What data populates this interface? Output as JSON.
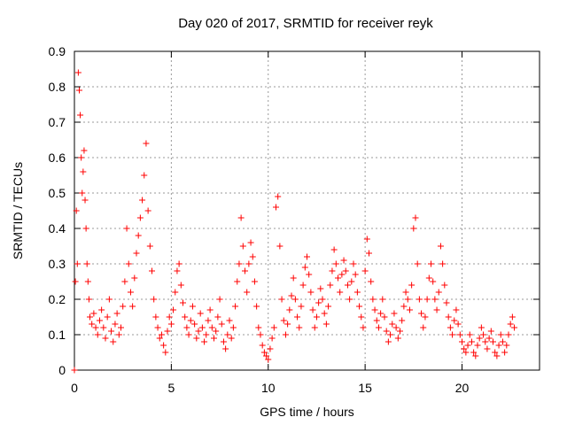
{
  "chart_data": {
    "type": "scatter",
    "title": "Day 020 of 2017, SRMTID for receiver reyk",
    "xlabel": "GPS time / hours",
    "ylabel": "SRMTID / TECUs",
    "xlim": [
      0,
      24
    ],
    "ylim": [
      0,
      0.9
    ],
    "xticks": [
      0,
      5,
      10,
      15,
      20
    ],
    "yticks": [
      0,
      0.1,
      0.2,
      0.3,
      0.4,
      0.5,
      0.6,
      0.7,
      0.8,
      0.9
    ],
    "grid": true,
    "marker": "+",
    "color": "#ff0000",
    "series": [
      {
        "name": "SRMTID",
        "points": [
          [
            0.0,
            0.0
          ],
          [
            0.05,
            0.25
          ],
          [
            0.1,
            0.45
          ],
          [
            0.15,
            0.3
          ],
          [
            0.2,
            0.84
          ],
          [
            0.25,
            0.79
          ],
          [
            0.3,
            0.72
          ],
          [
            0.35,
            0.6
          ],
          [
            0.4,
            0.5
          ],
          [
            0.45,
            0.56
          ],
          [
            0.5,
            0.62
          ],
          [
            0.55,
            0.48
          ],
          [
            0.6,
            0.4
          ],
          [
            0.65,
            0.3
          ],
          [
            0.7,
            0.25
          ],
          [
            0.75,
            0.2
          ],
          [
            0.8,
            0.15
          ],
          [
            0.9,
            0.13
          ],
          [
            1.0,
            0.16
          ],
          [
            1.1,
            0.12
          ],
          [
            1.2,
            0.1
          ],
          [
            1.3,
            0.14
          ],
          [
            1.4,
            0.17
          ],
          [
            1.5,
            0.12
          ],
          [
            1.6,
            0.09
          ],
          [
            1.7,
            0.15
          ],
          [
            1.8,
            0.2
          ],
          [
            1.9,
            0.11
          ],
          [
            2.0,
            0.08
          ],
          [
            2.1,
            0.13
          ],
          [
            2.2,
            0.16
          ],
          [
            2.3,
            0.1
          ],
          [
            2.4,
            0.12
          ],
          [
            2.5,
            0.18
          ],
          [
            2.6,
            0.25
          ],
          [
            2.7,
            0.4
          ],
          [
            2.8,
            0.3
          ],
          [
            2.9,
            0.22
          ],
          [
            3.0,
            0.18
          ],
          [
            3.1,
            0.26
          ],
          [
            3.2,
            0.33
          ],
          [
            3.3,
            0.38
          ],
          [
            3.4,
            0.43
          ],
          [
            3.5,
            0.48
          ],
          [
            3.6,
            0.55
          ],
          [
            3.7,
            0.64
          ],
          [
            3.8,
            0.45
          ],
          [
            3.9,
            0.35
          ],
          [
            4.0,
            0.28
          ],
          [
            4.1,
            0.2
          ],
          [
            4.2,
            0.15
          ],
          [
            4.3,
            0.12
          ],
          [
            4.4,
            0.09
          ],
          [
            4.5,
            0.1
          ],
          [
            4.6,
            0.07
          ],
          [
            4.7,
            0.05
          ],
          [
            4.8,
            0.11
          ],
          [
            4.9,
            0.15
          ],
          [
            5.0,
            0.13
          ],
          [
            5.1,
            0.17
          ],
          [
            5.2,
            0.22
          ],
          [
            5.3,
            0.28
          ],
          [
            5.4,
            0.3
          ],
          [
            5.5,
            0.24
          ],
          [
            5.6,
            0.19
          ],
          [
            5.7,
            0.15
          ],
          [
            5.8,
            0.12
          ],
          [
            5.9,
            0.1
          ],
          [
            6.0,
            0.14
          ],
          [
            6.1,
            0.18
          ],
          [
            6.2,
            0.13
          ],
          [
            6.3,
            0.09
          ],
          [
            6.4,
            0.11
          ],
          [
            6.5,
            0.16
          ],
          [
            6.6,
            0.12
          ],
          [
            6.7,
            0.08
          ],
          [
            6.8,
            0.1
          ],
          [
            6.9,
            0.14
          ],
          [
            7.0,
            0.17
          ],
          [
            7.1,
            0.12
          ],
          [
            7.2,
            0.09
          ],
          [
            7.3,
            0.11
          ],
          [
            7.4,
            0.15
          ],
          [
            7.5,
            0.2
          ],
          [
            7.6,
            0.13
          ],
          [
            7.7,
            0.08
          ],
          [
            7.8,
            0.06
          ],
          [
            7.9,
            0.1
          ],
          [
            8.0,
            0.14
          ],
          [
            8.1,
            0.09
          ],
          [
            8.2,
            0.12
          ],
          [
            8.3,
            0.18
          ],
          [
            8.4,
            0.25
          ],
          [
            8.5,
            0.3
          ],
          [
            8.6,
            0.43
          ],
          [
            8.7,
            0.35
          ],
          [
            8.8,
            0.28
          ],
          [
            8.9,
            0.22
          ],
          [
            9.0,
            0.3
          ],
          [
            9.1,
            0.36
          ],
          [
            9.2,
            0.32
          ],
          [
            9.3,
            0.25
          ],
          [
            9.4,
            0.18
          ],
          [
            9.5,
            0.12
          ],
          [
            9.6,
            0.1
          ],
          [
            9.7,
            0.07
          ],
          [
            9.8,
            0.05
          ],
          [
            9.9,
            0.04
          ],
          [
            10.0,
            0.03
          ],
          [
            10.1,
            0.06
          ],
          [
            10.2,
            0.09
          ],
          [
            10.3,
            0.12
          ],
          [
            10.4,
            0.46
          ],
          [
            10.5,
            0.49
          ],
          [
            10.6,
            0.35
          ],
          [
            10.7,
            0.2
          ],
          [
            10.8,
            0.14
          ],
          [
            10.9,
            0.1
          ],
          [
            11.0,
            0.13
          ],
          [
            11.1,
            0.17
          ],
          [
            11.2,
            0.21
          ],
          [
            11.3,
            0.26
          ],
          [
            11.4,
            0.2
          ],
          [
            11.5,
            0.15
          ],
          [
            11.6,
            0.12
          ],
          [
            11.7,
            0.18
          ],
          [
            11.8,
            0.24
          ],
          [
            11.9,
            0.29
          ],
          [
            12.0,
            0.32
          ],
          [
            12.1,
            0.27
          ],
          [
            12.2,
            0.22
          ],
          [
            12.3,
            0.17
          ],
          [
            12.4,
            0.12
          ],
          [
            12.5,
            0.15
          ],
          [
            12.6,
            0.19
          ],
          [
            12.7,
            0.23
          ],
          [
            12.8,
            0.2
          ],
          [
            12.9,
            0.16
          ],
          [
            13.0,
            0.13
          ],
          [
            13.1,
            0.18
          ],
          [
            13.2,
            0.24
          ],
          [
            13.3,
            0.28
          ],
          [
            13.4,
            0.34
          ],
          [
            13.5,
            0.3
          ],
          [
            13.6,
            0.26
          ],
          [
            13.7,
            0.22
          ],
          [
            13.8,
            0.27
          ],
          [
            13.9,
            0.31
          ],
          [
            14.0,
            0.28
          ],
          [
            14.1,
            0.24
          ],
          [
            14.2,
            0.2
          ],
          [
            14.3,
            0.25
          ],
          [
            14.4,
            0.3
          ],
          [
            14.5,
            0.27
          ],
          [
            14.6,
            0.22
          ],
          [
            14.7,
            0.18
          ],
          [
            14.8,
            0.15
          ],
          [
            14.9,
            0.12
          ],
          [
            15.0,
            0.28
          ],
          [
            15.1,
            0.37
          ],
          [
            15.2,
            0.33
          ],
          [
            15.3,
            0.25
          ],
          [
            15.4,
            0.2
          ],
          [
            15.5,
            0.17
          ],
          [
            15.6,
            0.14
          ],
          [
            15.7,
            0.12
          ],
          [
            15.8,
            0.16
          ],
          [
            15.9,
            0.2
          ],
          [
            16.0,
            0.15
          ],
          [
            16.1,
            0.11
          ],
          [
            16.2,
            0.08
          ],
          [
            16.3,
            0.1
          ],
          [
            16.4,
            0.13
          ],
          [
            16.5,
            0.16
          ],
          [
            16.6,
            0.12
          ],
          [
            16.7,
            0.09
          ],
          [
            16.8,
            0.11
          ],
          [
            16.9,
            0.14
          ],
          [
            17.0,
            0.18
          ],
          [
            17.1,
            0.22
          ],
          [
            17.2,
            0.2
          ],
          [
            17.3,
            0.17
          ],
          [
            17.4,
            0.24
          ],
          [
            17.5,
            0.4
          ],
          [
            17.6,
            0.43
          ],
          [
            17.7,
            0.3
          ],
          [
            17.8,
            0.2
          ],
          [
            17.9,
            0.16
          ],
          [
            18.0,
            0.12
          ],
          [
            18.1,
            0.15
          ],
          [
            18.2,
            0.2
          ],
          [
            18.3,
            0.26
          ],
          [
            18.4,
            0.3
          ],
          [
            18.5,
            0.25
          ],
          [
            18.6,
            0.2
          ],
          [
            18.7,
            0.17
          ],
          [
            18.8,
            0.22
          ],
          [
            18.9,
            0.35
          ],
          [
            19.0,
            0.3
          ],
          [
            19.1,
            0.24
          ],
          [
            19.2,
            0.19
          ],
          [
            19.3,
            0.15
          ],
          [
            19.4,
            0.12
          ],
          [
            19.5,
            0.1
          ],
          [
            19.6,
            0.14
          ],
          [
            19.7,
            0.17
          ],
          [
            19.8,
            0.13
          ],
          [
            19.9,
            0.1
          ],
          [
            20.0,
            0.08
          ],
          [
            20.1,
            0.06
          ],
          [
            20.2,
            0.05
          ],
          [
            20.3,
            0.07
          ],
          [
            20.4,
            0.1
          ],
          [
            20.5,
            0.08
          ],
          [
            20.6,
            0.05
          ],
          [
            20.7,
            0.04
          ],
          [
            20.8,
            0.07
          ],
          [
            20.9,
            0.09
          ],
          [
            21.0,
            0.12
          ],
          [
            21.1,
            0.1
          ],
          [
            21.2,
            0.08
          ],
          [
            21.3,
            0.06
          ],
          [
            21.4,
            0.09
          ],
          [
            21.5,
            0.11
          ],
          [
            21.6,
            0.08
          ],
          [
            21.7,
            0.05
          ],
          [
            21.8,
            0.04
          ],
          [
            21.9,
            0.07
          ],
          [
            22.0,
            0.1
          ],
          [
            22.1,
            0.08
          ],
          [
            22.2,
            0.05
          ],
          [
            22.3,
            0.07
          ],
          [
            22.4,
            0.1
          ],
          [
            22.5,
            0.13
          ],
          [
            22.6,
            0.15
          ],
          [
            22.7,
            0.12
          ]
        ]
      }
    ]
  }
}
